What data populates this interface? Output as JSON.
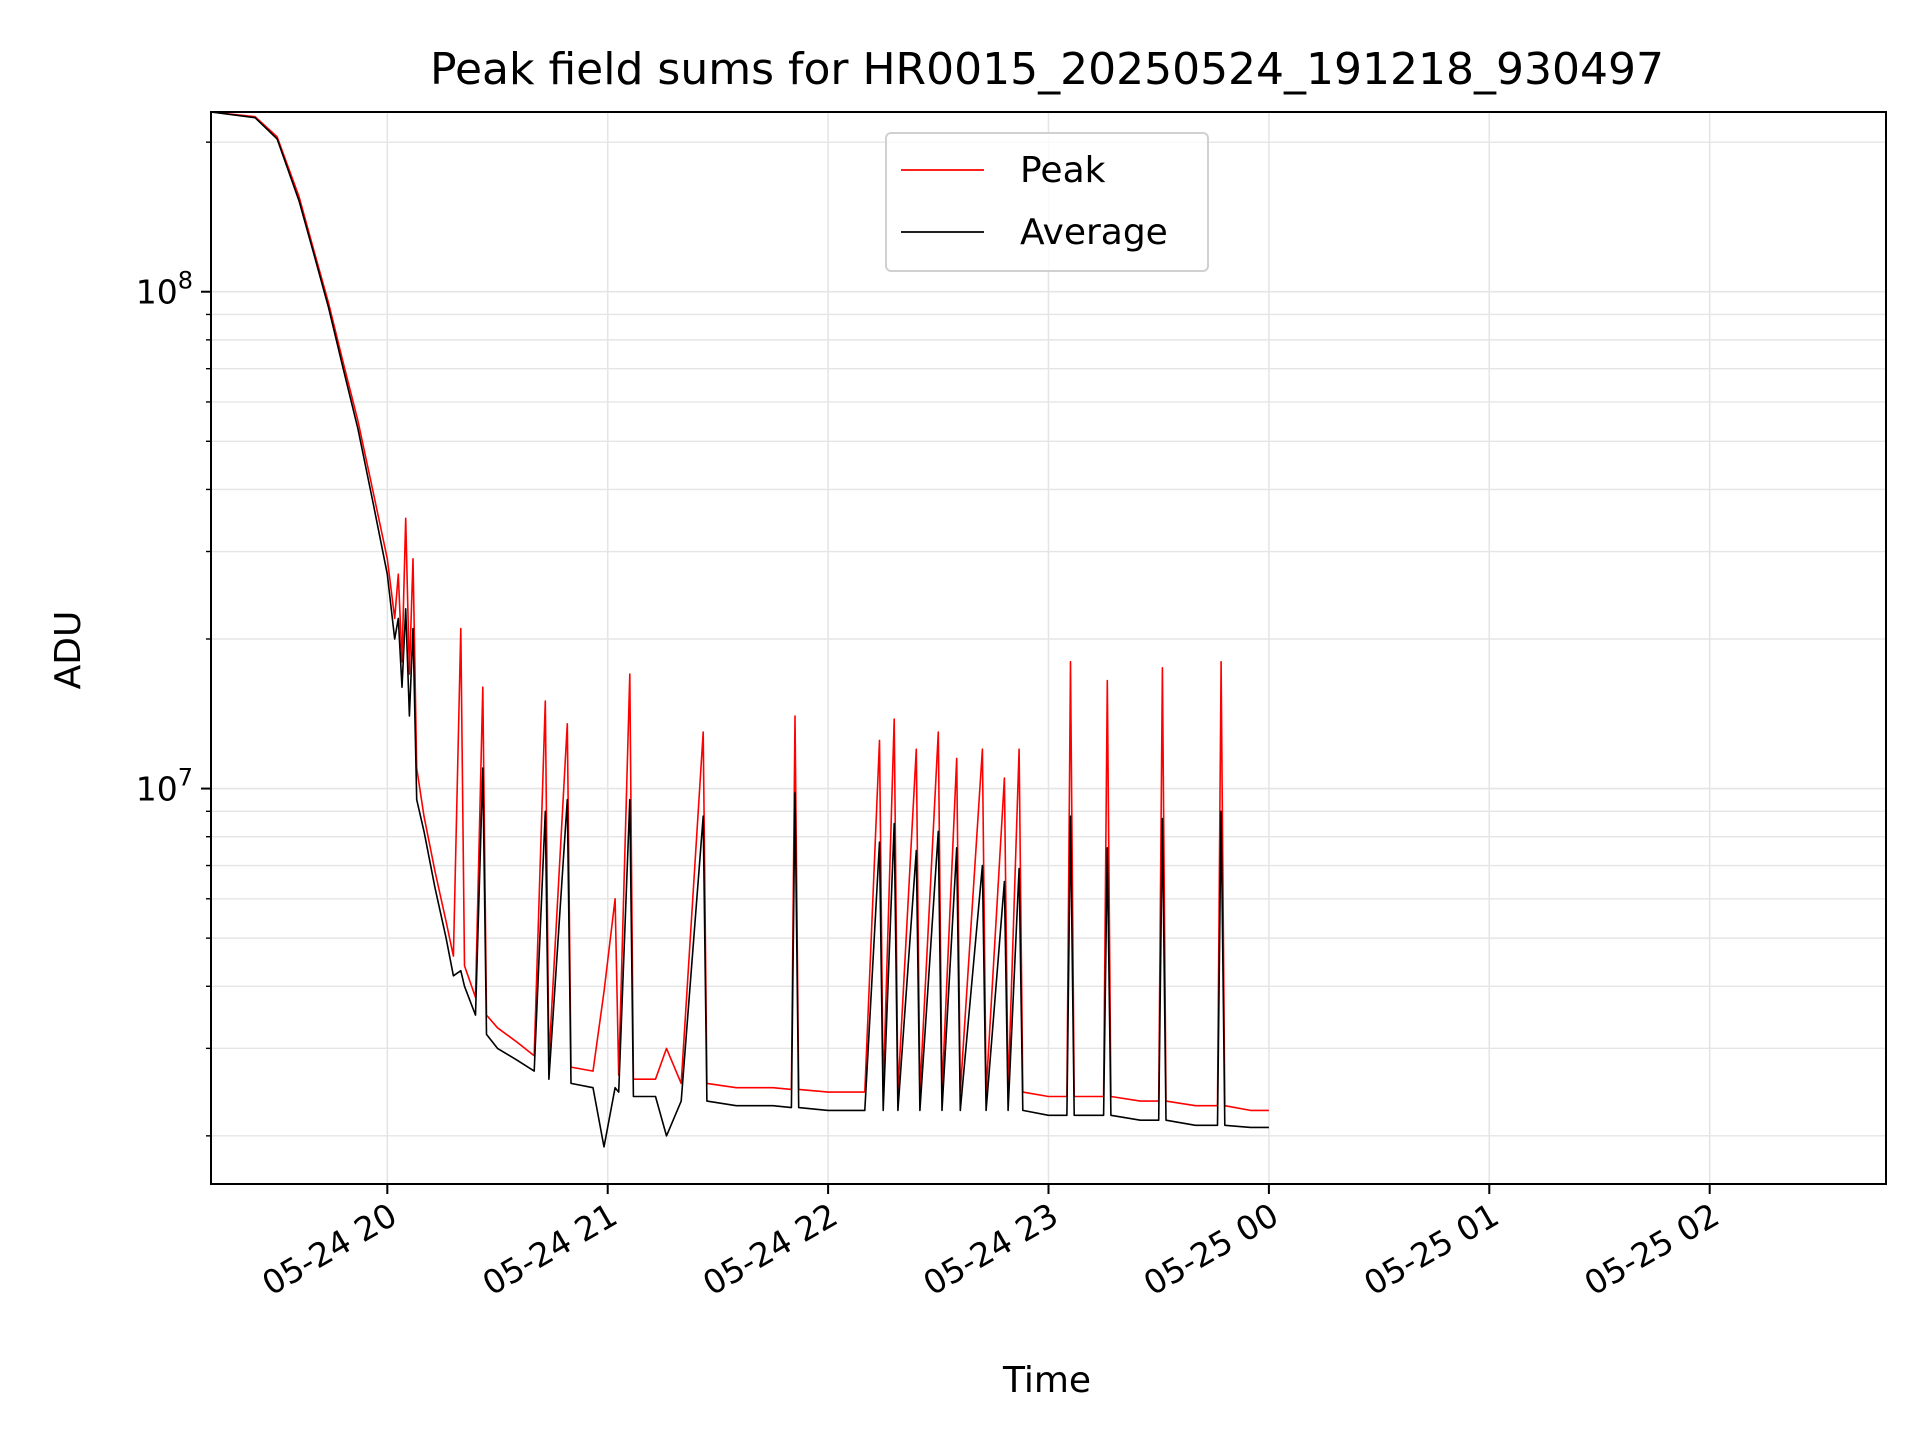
{
  "chart_data": {
    "type": "line",
    "title": "Peak field sums for HR0015_20250524_191218_930497",
    "xlabel": "Time",
    "ylabel": "ADU",
    "y_scale": "log",
    "ylim": [
      1600000,
      230000000
    ],
    "xlim": [
      "2025-05-24 19:12",
      "2025-05-25 02:48"
    ],
    "x_ticks": [
      {
        "value": "2025-05-24 20:00",
        "label": "05-24 20"
      },
      {
        "value": "2025-05-24 21:00",
        "label": "05-24 21"
      },
      {
        "value": "2025-05-24 22:00",
        "label": "05-24 22"
      },
      {
        "value": "2025-05-24 23:00",
        "label": "05-24 23"
      },
      {
        "value": "2025-05-25 00:00",
        "label": "05-25 00"
      },
      {
        "value": "2025-05-25 01:00",
        "label": "05-25 01"
      },
      {
        "value": "2025-05-25 02:00",
        "label": "05-25 02"
      }
    ],
    "y_ticks": [
      {
        "value": 10000000,
        "base": "10",
        "exp": "7"
      },
      {
        "value": 100000000,
        "base": "10",
        "exp": "8"
      }
    ],
    "grid": true,
    "legend_position": "top-center",
    "series": [
      {
        "name": "Peak",
        "color": "#ff0000",
        "points": [
          [
            "2025-05-24 19:12",
            230000000
          ],
          [
            "2025-05-24 19:24",
            225000000
          ],
          [
            "2025-05-24 19:30",
            205000000
          ],
          [
            "2025-05-24 19:36",
            155000000
          ],
          [
            "2025-05-24 19:40",
            121000000
          ],
          [
            "2025-05-24 19:44",
            95000000
          ],
          [
            "2025-05-24 19:48",
            72000000
          ],
          [
            "2025-05-24 19:52",
            55000000
          ],
          [
            "2025-05-24 19:56",
            40000000
          ],
          [
            "2025-05-24 20:00",
            29000000
          ],
          [
            "2025-05-24 20:02",
            22000000
          ],
          [
            "2025-05-24 20:03",
            27000000
          ],
          [
            "2025-05-24 20:04",
            18000000
          ],
          [
            "2025-05-24 20:05",
            35000000
          ],
          [
            "2025-05-24 20:06",
            17000000
          ],
          [
            "2025-05-24 20:07",
            29000000
          ],
          [
            "2025-05-24 20:08",
            11000000
          ],
          [
            "2025-05-24 20:10",
            8800000
          ],
          [
            "2025-05-24 20:13",
            6800000
          ],
          [
            "2025-05-24 20:16",
            5400000
          ],
          [
            "2025-05-24 20:18",
            4600000
          ],
          [
            "2025-05-24 20:20",
            21000000
          ],
          [
            "2025-05-24 20:21",
            4400000
          ],
          [
            "2025-05-24 20:24",
            3800000
          ],
          [
            "2025-05-24 20:26",
            16000000
          ],
          [
            "2025-05-24 20:27",
            3500000
          ],
          [
            "2025-05-24 20:30",
            3300000
          ],
          [
            "2025-05-24 20:35",
            3100000
          ],
          [
            "2025-05-24 20:40",
            2900000
          ],
          [
            "2025-05-24 20:43",
            15000000
          ],
          [
            "2025-05-24 20:44",
            2850000
          ],
          [
            "2025-05-24 20:49",
            13500000
          ],
          [
            "2025-05-24 20:50",
            2750000
          ],
          [
            "2025-05-24 20:56",
            2700000
          ],
          [
            "2025-05-24 20:59",
            3900000
          ],
          [
            "2025-05-24 21:02",
            6000000
          ],
          [
            "2025-05-24 21:03",
            2650000
          ],
          [
            "2025-05-24 21:06",
            17000000
          ],
          [
            "2025-05-24 21:07",
            2600000
          ],
          [
            "2025-05-24 21:13",
            2600000
          ],
          [
            "2025-05-24 21:16",
            3000000
          ],
          [
            "2025-05-24 21:20",
            2550000
          ],
          [
            "2025-05-24 21:26",
            13000000
          ],
          [
            "2025-05-24 21:27",
            2550000
          ],
          [
            "2025-05-24 21:35",
            2500000
          ],
          [
            "2025-05-24 21:45",
            2500000
          ],
          [
            "2025-05-24 21:50",
            2480000
          ],
          [
            "2025-05-24 21:51",
            14000000
          ],
          [
            "2025-05-24 21:52",
            2480000
          ],
          [
            "2025-05-24 22:00",
            2450000
          ],
          [
            "2025-05-24 22:10",
            2450000
          ],
          [
            "2025-05-24 22:14",
            12500000
          ],
          [
            "2025-05-24 22:15",
            2450000
          ],
          [
            "2025-05-24 22:18",
            13800000
          ],
          [
            "2025-05-24 22:19",
            2450000
          ],
          [
            "2025-05-24 22:24",
            12000000
          ],
          [
            "2025-05-24 22:25",
            2450000
          ],
          [
            "2025-05-24 22:30",
            13000000
          ],
          [
            "2025-05-24 22:31",
            2450000
          ],
          [
            "2025-05-24 22:35",
            11500000
          ],
          [
            "2025-05-24 22:36",
            2450000
          ],
          [
            "2025-05-24 22:42",
            12000000
          ],
          [
            "2025-05-24 22:43",
            2450000
          ],
          [
            "2025-05-24 22:48",
            10500000
          ],
          [
            "2025-05-24 22:49",
            2450000
          ],
          [
            "2025-05-24 22:52",
            12000000
          ],
          [
            "2025-05-24 22:53",
            2450000
          ],
          [
            "2025-05-24 23:00",
            2400000
          ],
          [
            "2025-05-24 23:05",
            2400000
          ],
          [
            "2025-05-24 23:06",
            18000000
          ],
          [
            "2025-05-24 23:07",
            2400000
          ],
          [
            "2025-05-24 23:15",
            2400000
          ],
          [
            "2025-05-24 23:16",
            16500000
          ],
          [
            "2025-05-24 23:17",
            2400000
          ],
          [
            "2025-05-24 23:25",
            2350000
          ],
          [
            "2025-05-24 23:30",
            2350000
          ],
          [
            "2025-05-24 23:31",
            17500000
          ],
          [
            "2025-05-24 23:32",
            2350000
          ],
          [
            "2025-05-24 23:40",
            2300000
          ],
          [
            "2025-05-24 23:46",
            2300000
          ],
          [
            "2025-05-24 23:47",
            18000000
          ],
          [
            "2025-05-24 23:48",
            2300000
          ],
          [
            "2025-05-24 23:55",
            2250000
          ],
          [
            "2025-05-25 00:00",
            2250000
          ]
        ]
      },
      {
        "name": "Average",
        "color": "#000000",
        "points": [
          [
            "2025-05-24 19:12",
            230000000
          ],
          [
            "2025-05-24 19:24",
            224000000
          ],
          [
            "2025-05-24 19:30",
            203000000
          ],
          [
            "2025-05-24 19:36",
            152000000
          ],
          [
            "2025-05-24 19:40",
            119000000
          ],
          [
            "2025-05-24 19:44",
            93000000
          ],
          [
            "2025-05-24 19:48",
            70000000
          ],
          [
            "2025-05-24 19:52",
            53000000
          ],
          [
            "2025-05-24 19:56",
            38000000
          ],
          [
            "2025-05-24 20:00",
            27000000
          ],
          [
            "2025-05-24 20:02",
            20000000
          ],
          [
            "2025-05-24 20:03",
            22000000
          ],
          [
            "2025-05-24 20:04",
            16000000
          ],
          [
            "2025-05-24 20:05",
            23000000
          ],
          [
            "2025-05-24 20:06",
            14000000
          ],
          [
            "2025-05-24 20:07",
            21000000
          ],
          [
            "2025-05-24 20:08",
            9500000
          ],
          [
            "2025-05-24 20:10",
            8200000
          ],
          [
            "2025-05-24 20:13",
            6300000
          ],
          [
            "2025-05-24 20:16",
            5000000
          ],
          [
            "2025-05-24 20:18",
            4200000
          ],
          [
            "2025-05-24 20:20",
            4300000
          ],
          [
            "2025-05-24 20:21",
            4000000
          ],
          [
            "2025-05-24 20:24",
            3500000
          ],
          [
            "2025-05-24 20:26",
            11000000
          ],
          [
            "2025-05-24 20:27",
            3200000
          ],
          [
            "2025-05-24 20:30",
            3000000
          ],
          [
            "2025-05-24 20:35",
            2850000
          ],
          [
            "2025-05-24 20:40",
            2700000
          ],
          [
            "2025-05-24 20:43",
            9000000
          ],
          [
            "2025-05-24 20:44",
            2600000
          ],
          [
            "2025-05-24 20:49",
            9500000
          ],
          [
            "2025-05-24 20:50",
            2550000
          ],
          [
            "2025-05-24 20:56",
            2500000
          ],
          [
            "2025-05-24 20:59",
            1900000
          ],
          [
            "2025-05-24 21:02",
            2500000
          ],
          [
            "2025-05-24 21:03",
            2450000
          ],
          [
            "2025-05-24 21:06",
            9500000
          ],
          [
            "2025-05-24 21:07",
            2400000
          ],
          [
            "2025-05-24 21:13",
            2400000
          ],
          [
            "2025-05-24 21:16",
            2000000
          ],
          [
            "2025-05-24 21:20",
            2350000
          ],
          [
            "2025-05-24 21:26",
            8800000
          ],
          [
            "2025-05-24 21:27",
            2350000
          ],
          [
            "2025-05-24 21:35",
            2300000
          ],
          [
            "2025-05-24 21:45",
            2300000
          ],
          [
            "2025-05-24 21:50",
            2280000
          ],
          [
            "2025-05-24 21:51",
            9800000
          ],
          [
            "2025-05-24 21:52",
            2280000
          ],
          [
            "2025-05-24 22:00",
            2250000
          ],
          [
            "2025-05-24 22:10",
            2250000
          ],
          [
            "2025-05-24 22:14",
            7800000
          ],
          [
            "2025-05-24 22:15",
            2250000
          ],
          [
            "2025-05-24 22:18",
            8500000
          ],
          [
            "2025-05-24 22:19",
            2250000
          ],
          [
            "2025-05-24 22:24",
            7500000
          ],
          [
            "2025-05-24 22:25",
            2250000
          ],
          [
            "2025-05-24 22:30",
            8200000
          ],
          [
            "2025-05-24 22:31",
            2250000
          ],
          [
            "2025-05-24 22:35",
            7600000
          ],
          [
            "2025-05-24 22:36",
            2250000
          ],
          [
            "2025-05-24 22:42",
            7000000
          ],
          [
            "2025-05-24 22:43",
            2250000
          ],
          [
            "2025-05-24 22:48",
            6500000
          ],
          [
            "2025-05-24 22:49",
            2250000
          ],
          [
            "2025-05-24 22:52",
            6900000
          ],
          [
            "2025-05-24 22:53",
            2250000
          ],
          [
            "2025-05-24 23:00",
            2200000
          ],
          [
            "2025-05-24 23:05",
            2200000
          ],
          [
            "2025-05-24 23:06",
            8800000
          ],
          [
            "2025-05-24 23:07",
            2200000
          ],
          [
            "2025-05-24 23:15",
            2200000
          ],
          [
            "2025-05-24 23:16",
            7600000
          ],
          [
            "2025-05-24 23:17",
            2200000
          ],
          [
            "2025-05-24 23:25",
            2150000
          ],
          [
            "2025-05-24 23:30",
            2150000
          ],
          [
            "2025-05-24 23:31",
            8700000
          ],
          [
            "2025-05-24 23:32",
            2150000
          ],
          [
            "2025-05-24 23:40",
            2100000
          ],
          [
            "2025-05-24 23:46",
            2100000
          ],
          [
            "2025-05-24 23:47",
            9000000
          ],
          [
            "2025-05-24 23:48",
            2100000
          ],
          [
            "2025-05-24 23:55",
            2080000
          ],
          [
            "2025-05-25 00:00",
            2080000
          ]
        ]
      }
    ]
  }
}
